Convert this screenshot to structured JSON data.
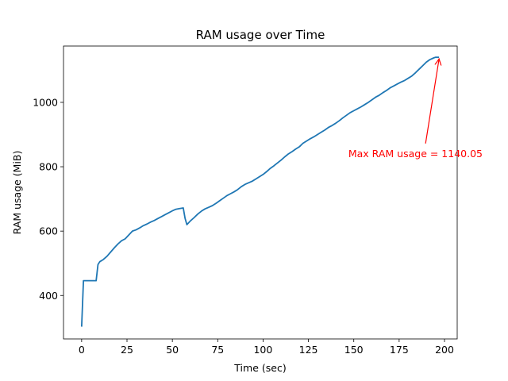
{
  "chart_data": {
    "type": "line",
    "title": "RAM usage over Time",
    "xlabel": "Time (sec)",
    "ylabel": "RAM usage (MiB)",
    "xlim": [
      -10,
      207
    ],
    "ylim": [
      265,
      1175
    ],
    "xticks": [
      0,
      25,
      50,
      75,
      100,
      125,
      150,
      175,
      200
    ],
    "yticks": [
      400,
      600,
      800,
      1000
    ],
    "grid": false,
    "legend": "none",
    "series": [
      {
        "color": "#1f77b4",
        "x": [
          0,
          1,
          2,
          4,
          6,
          8,
          9,
          10,
          12,
          14,
          16,
          18,
          20,
          22,
          24,
          26,
          28,
          30,
          32,
          34,
          36,
          38,
          40,
          42,
          44,
          46,
          48,
          50,
          52,
          54,
          56,
          57,
          58,
          60,
          62,
          64,
          66,
          68,
          70,
          72,
          74,
          76,
          78,
          80,
          82,
          84,
          86,
          88,
          90,
          92,
          94,
          96,
          98,
          100,
          102,
          104,
          106,
          108,
          110,
          112,
          114,
          116,
          118,
          120,
          122,
          124,
          126,
          128,
          130,
          132,
          134,
          136,
          138,
          140,
          142,
          144,
          146,
          148,
          150,
          152,
          154,
          156,
          158,
          160,
          162,
          164,
          166,
          168,
          170,
          172,
          174,
          176,
          178,
          180,
          182,
          184,
          186,
          188,
          190,
          192,
          194,
          195,
          196,
          197
        ],
        "y": [
          303,
          446,
          446,
          446,
          446,
          446,
          496,
          505,
          512,
          522,
          535,
          548,
          560,
          570,
          576,
          588,
          600,
          604,
          610,
          617,
          622,
          628,
          633,
          639,
          645,
          651,
          657,
          663,
          668,
          670,
          672,
          640,
          620,
          632,
          642,
          653,
          662,
          669,
          674,
          679,
          686,
          694,
          702,
          710,
          716,
          722,
          729,
          738,
          745,
          750,
          755,
          762,
          769,
          776,
          785,
          795,
          803,
          812,
          821,
          831,
          840,
          847,
          855,
          862,
          873,
          880,
          887,
          893,
          900,
          907,
          914,
          922,
          928,
          935,
          943,
          952,
          960,
          968,
          974,
          980,
          986,
          993,
          1000,
          1008,
          1016,
          1022,
          1030,
          1037,
          1045,
          1051,
          1057,
          1063,
          1068,
          1075,
          1082,
          1092,
          1103,
          1114,
          1125,
          1133,
          1138,
          1140,
          1140.05,
          1140
        ]
      }
    ],
    "annotation": {
      "text": "Max RAM usage = 1140.05",
      "point": [
        197,
        1140.05
      ],
      "text_pos": [
        147,
        840
      ],
      "color": "#ff0000"
    }
  }
}
